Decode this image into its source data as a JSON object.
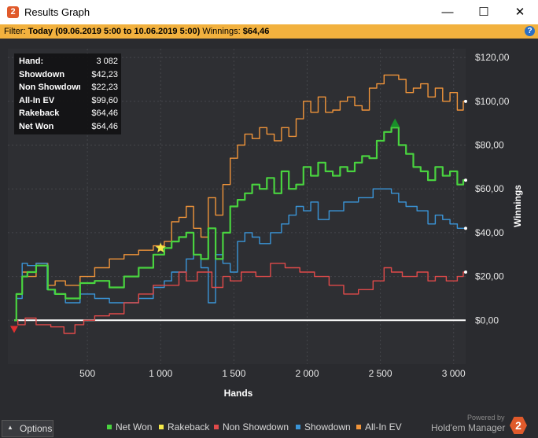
{
  "window": {
    "title": "Results Graph",
    "app_icon": "2",
    "controls": {
      "minimize": "—",
      "maximize": "☐",
      "close": "✕"
    }
  },
  "filter": {
    "prefix": "Filter:",
    "value": "Today (09.06.2019 5:00 to 10.06.2019 5:00)",
    "winnings_label": "Winnings:",
    "winnings_value": "$64,46",
    "help": "?"
  },
  "stats": [
    {
      "label": "Hand:",
      "value": "3 082"
    },
    {
      "label": "Showdown",
      "value": "$42,23"
    },
    {
      "label": "Non Showdown",
      "value": "$22,23"
    },
    {
      "label": "All-In EV",
      "value": "$99,60"
    },
    {
      "label": "Rakeback",
      "value": "$64,46"
    },
    {
      "label": "Net Won",
      "value": "$64,46"
    }
  ],
  "chart_data": {
    "type": "line",
    "xlabel": "Hands",
    "ylabel": "Winnings",
    "xlim": [
      0,
      3082
    ],
    "ylim": [
      -20,
      124
    ],
    "x_ticks": [
      500,
      1000,
      1500,
      2000,
      2500,
      3000
    ],
    "x_tick_labels": [
      "500",
      "1 000",
      "1 500",
      "2 000",
      "2 500",
      "3 000"
    ],
    "y_ticks": [
      0,
      20,
      40,
      60,
      80,
      100,
      120
    ],
    "y_tick_labels": [
      "$0,00",
      "$20,00",
      "$40,00",
      "$60,00",
      "$80,00",
      "$100,00",
      "$120,00"
    ],
    "grid": true,
    "legend_position": "bottom",
    "series": [
      {
        "name": "Net Won",
        "color": "#49d33f",
        "x": [
          0,
          30,
          80,
          100,
          200,
          260,
          300,
          400,
          500,
          600,
          700,
          800,
          900,
          1000,
          1050,
          1100,
          1150,
          1200,
          1250,
          1300,
          1350,
          1400,
          1450,
          1500,
          1550,
          1600,
          1650,
          1700,
          1750,
          1800,
          1850,
          1900,
          1950,
          2000,
          2050,
          2100,
          2150,
          2200,
          2250,
          2300,
          2350,
          2400,
          2450,
          2500,
          2550,
          2600,
          2650,
          2700,
          2750,
          2800,
          2850,
          2900,
          2950,
          3000,
          3050,
          3082
        ],
        "y": [
          0,
          12,
          20,
          22,
          25,
          14,
          12,
          10,
          17,
          18,
          15,
          20,
          24,
          30,
          33,
          36,
          38,
          40,
          30,
          28,
          42,
          28,
          40,
          52,
          55,
          58,
          62,
          60,
          65,
          58,
          68,
          60,
          62,
          70,
          66,
          72,
          68,
          66,
          70,
          68,
          72,
          75,
          74,
          82,
          86,
          88,
          80,
          76,
          70,
          68,
          64,
          70,
          66,
          68,
          62,
          64
        ]
      },
      {
        "name": "Rakeback",
        "color": "#f5e94a",
        "x": [],
        "y": []
      },
      {
        "name": "Non Showdown",
        "color": "#e04a4a",
        "x": [
          0,
          50,
          100,
          200,
          300,
          380,
          450,
          500,
          600,
          700,
          800,
          900,
          1000,
          1100,
          1150,
          1200,
          1300,
          1400,
          1450,
          1500,
          1600,
          1700,
          1800,
          1900,
          2000,
          2100,
          2200,
          2300,
          2400,
          2500,
          2550,
          2600,
          2700,
          2800,
          2850,
          2900,
          3000,
          3050,
          3082
        ],
        "y": [
          0,
          -2,
          1,
          -2,
          -3,
          -6,
          -2,
          0,
          2,
          3,
          8,
          12,
          16,
          16,
          22,
          18,
          22,
          15,
          20,
          18,
          22,
          20,
          26,
          24,
          22,
          20,
          16,
          12,
          14,
          18,
          24,
          22,
          20,
          22,
          18,
          20,
          18,
          20,
          22
        ]
      },
      {
        "name": "Showdown",
        "color": "#3a95d8",
        "x": [
          0,
          30,
          80,
          100,
          200,
          250,
          300,
          400,
          500,
          600,
          700,
          800,
          900,
          1000,
          1050,
          1100,
          1150,
          1200,
          1250,
          1300,
          1350,
          1400,
          1450,
          1500,
          1550,
          1600,
          1650,
          1700,
          1800,
          1850,
          1900,
          1950,
          2000,
          2050,
          2100,
          2200,
          2300,
          2400,
          2500,
          2550,
          2600,
          2650,
          2700,
          2800,
          2850,
          2900,
          2950,
          3000,
          3050,
          3082
        ],
        "y": [
          0,
          10,
          26,
          25,
          26,
          14,
          12,
          8,
          12,
          10,
          8,
          8,
          10,
          15,
          18,
          22,
          22,
          28,
          30,
          24,
          8,
          30,
          26,
          22,
          36,
          40,
          38,
          35,
          40,
          44,
          48,
          52,
          50,
          54,
          46,
          50,
          54,
          56,
          60,
          60,
          58,
          54,
          52,
          50,
          44,
          48,
          46,
          44,
          42,
          42
        ]
      },
      {
        "name": "All-In EV",
        "color": "#f0943a",
        "x": [
          0,
          30,
          80,
          100,
          200,
          260,
          300,
          400,
          500,
          600,
          700,
          800,
          900,
          1000,
          1050,
          1100,
          1150,
          1200,
          1250,
          1300,
          1350,
          1400,
          1450,
          1500,
          1550,
          1600,
          1650,
          1700,
          1750,
          1800,
          1850,
          1900,
          1950,
          2000,
          2050,
          2100,
          2150,
          2200,
          2250,
          2300,
          2350,
          2400,
          2450,
          2500,
          2550,
          2600,
          2650,
          2700,
          2750,
          2800,
          2850,
          2900,
          2950,
          3000,
          3050,
          3082
        ],
        "y": [
          0,
          12,
          22,
          20,
          26,
          16,
          18,
          16,
          20,
          24,
          28,
          30,
          32,
          34,
          36,
          45,
          47,
          52,
          42,
          38,
          56,
          48,
          62,
          74,
          80,
          85,
          83,
          88,
          85,
          82,
          88,
          84,
          92,
          100,
          95,
          102,
          95,
          96,
          100,
          102,
          98,
          96,
          106,
          108,
          112,
          112,
          110,
          104,
          106,
          108,
          102,
          106,
          100,
          104,
          96,
          100
        ]
      }
    ],
    "markers": [
      {
        "name": "start-min",
        "x": 0,
        "y": -4,
        "color": "#e03030"
      },
      {
        "name": "allin-star",
        "x": 1000,
        "y": 33,
        "color": "#f5e94a"
      },
      {
        "name": "peak-max",
        "x": 2600,
        "y": 90,
        "color": "#1a8f2a"
      }
    ]
  },
  "legend": [
    {
      "label": "Net Won",
      "color": "#49d33f"
    },
    {
      "label": "Rakeback",
      "color": "#f5e94a"
    },
    {
      "label": "Non Showdown",
      "color": "#e04a4a"
    },
    {
      "label": "Showdown",
      "color": "#3a95d8"
    },
    {
      "label": "All-In EV",
      "color": "#f0943a"
    }
  ],
  "options_label": "Options",
  "brand": {
    "powered": "Powered by",
    "product": "Hold'em Manager",
    "logo": "2"
  }
}
